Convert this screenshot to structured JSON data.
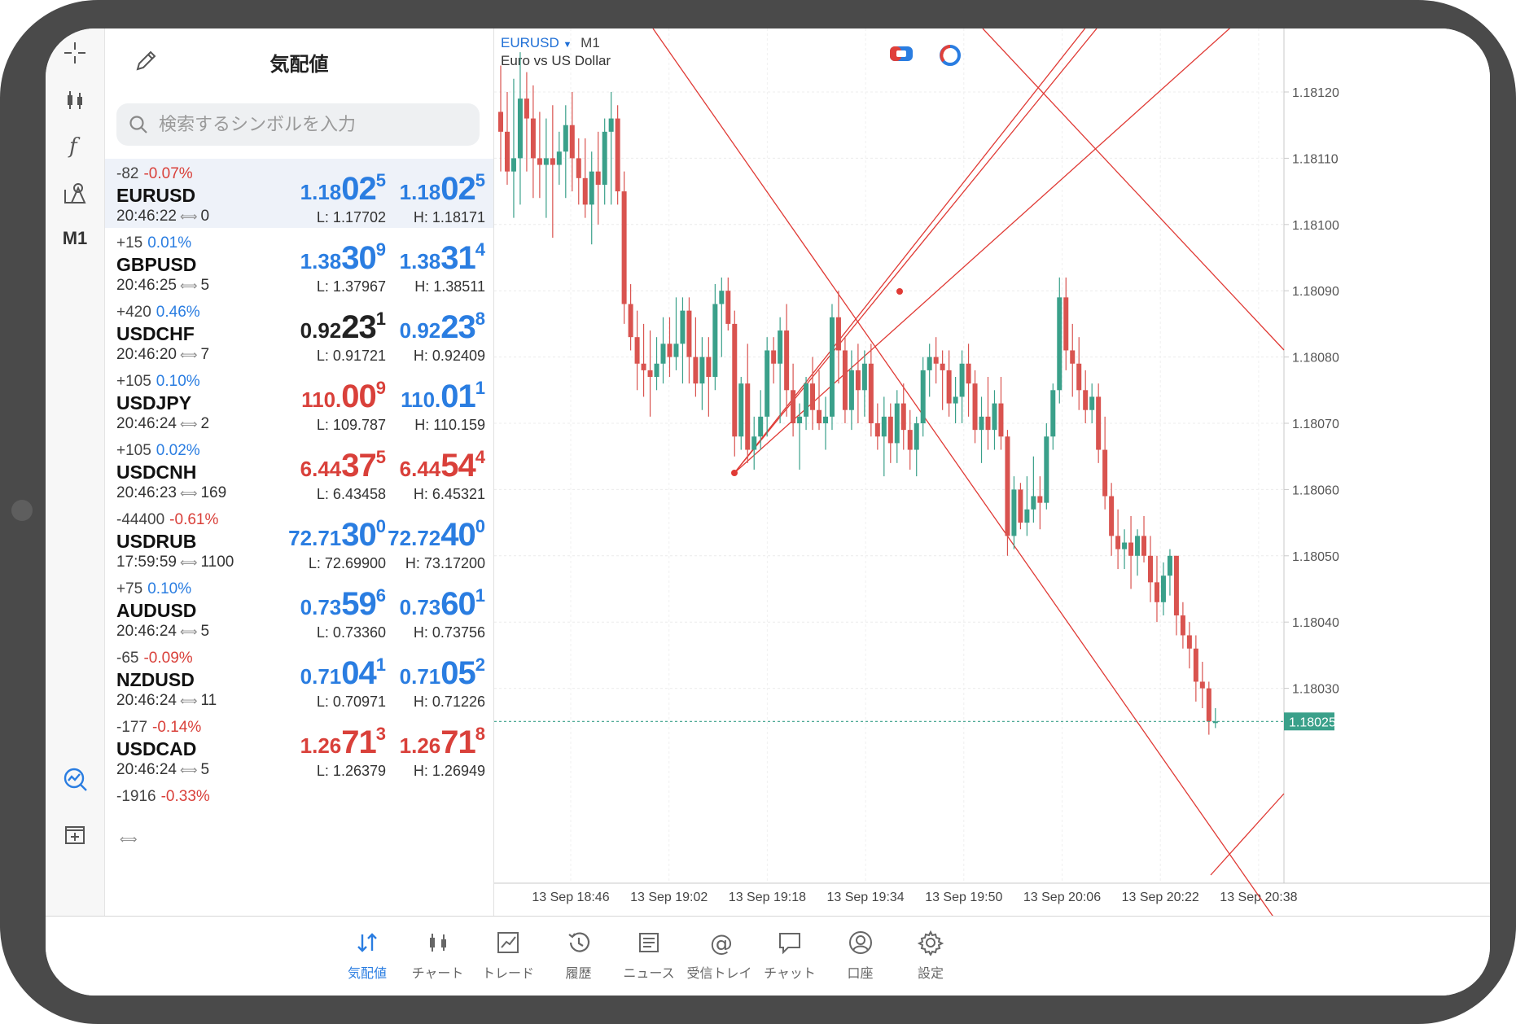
{
  "left_toolbar": {
    "timeframe_label": "M1",
    "icons": [
      "crosshair-icon",
      "indicators-icon",
      "function-icon",
      "objects-icon",
      "timeframe",
      "trade-signals-icon",
      "add-window-icon"
    ]
  },
  "quotes": {
    "title": "気配値",
    "search_placeholder": "検索するシンボルを入力",
    "rows": [
      {
        "change": "-82",
        "pct": "-0.07%",
        "dir": "dn",
        "symbol": "EURUSD",
        "time": "20:46:22",
        "spread": "0",
        "bid": {
          "a": "1.18",
          "b": "02",
          "c": "5",
          "color": "up"
        },
        "ask": {
          "a": "1.18",
          "b": "02",
          "c": "5",
          "color": "up"
        },
        "low": "L: 1.17702",
        "high": "H: 1.18171",
        "selected": true
      },
      {
        "change": "+15",
        "pct": "0.01%",
        "dir": "up",
        "symbol": "GBPUSD",
        "time": "20:46:25",
        "spread": "5",
        "bid": {
          "a": "1.38",
          "b": "30",
          "c": "9",
          "color": "up"
        },
        "ask": {
          "a": "1.38",
          "b": "31",
          "c": "4",
          "color": "up"
        },
        "low": "L: 1.37967",
        "high": "H: 1.38511"
      },
      {
        "change": "+420",
        "pct": "0.46%",
        "dir": "up",
        "symbol": "USDCHF",
        "time": "20:46:20",
        "spread": "7",
        "bid": {
          "a": "0.92",
          "b": "23",
          "c": "1",
          "color": "flat"
        },
        "ask": {
          "a": "0.92",
          "b": "23",
          "c": "8",
          "color": "up"
        },
        "low": "L: 0.91721",
        "high": "H: 0.92409"
      },
      {
        "change": "+105",
        "pct": "0.10%",
        "dir": "up",
        "symbol": "USDJPY",
        "time": "20:46:24",
        "spread": "2",
        "bid": {
          "a": "110.",
          "b": "00",
          "c": "9",
          "color": "dn"
        },
        "ask": {
          "a": "110.",
          "b": "01",
          "c": "1",
          "color": "up"
        },
        "low": "L: 109.787",
        "high": "H: 110.159"
      },
      {
        "change": "+105",
        "pct": "0.02%",
        "dir": "up",
        "symbol": "USDCNH",
        "time": "20:46:23",
        "spread": "169",
        "bid": {
          "a": "6.44",
          "b": "37",
          "c": "5",
          "color": "dn"
        },
        "ask": {
          "a": "6.44",
          "b": "54",
          "c": "4",
          "color": "dn"
        },
        "low": "L: 6.43458",
        "high": "H: 6.45321"
      },
      {
        "change": "-44400",
        "pct": "-0.61%",
        "dir": "dn",
        "symbol": "USDRUB",
        "time": "17:59:59",
        "spread": "1100",
        "bid": {
          "a": "72.71",
          "b": "30",
          "c": "0",
          "color": "up"
        },
        "ask": {
          "a": "72.72",
          "b": "40",
          "c": "0",
          "color": "up"
        },
        "low": "L: 72.69900",
        "high": "H: 73.17200"
      },
      {
        "change": "+75",
        "pct": "0.10%",
        "dir": "up",
        "symbol": "AUDUSD",
        "time": "20:46:24",
        "spread": "5",
        "bid": {
          "a": "0.73",
          "b": "59",
          "c": "6",
          "color": "up"
        },
        "ask": {
          "a": "0.73",
          "b": "60",
          "c": "1",
          "color": "up"
        },
        "low": "L: 0.73360",
        "high": "H: 0.73756"
      },
      {
        "change": "-65",
        "pct": "-0.09%",
        "dir": "dn",
        "symbol": "NZDUSD",
        "time": "20:46:24",
        "spread": "11",
        "bid": {
          "a": "0.71",
          "b": "04",
          "c": "1",
          "color": "up"
        },
        "ask": {
          "a": "0.71",
          "b": "05",
          "c": "2",
          "color": "up"
        },
        "low": "L: 0.70971",
        "high": "H: 0.71226"
      },
      {
        "change": "-177",
        "pct": "-0.14%",
        "dir": "dn",
        "symbol": "USDCAD",
        "time": "20:46:24",
        "spread": "5",
        "bid": {
          "a": "1.26",
          "b": "71",
          "c": "3",
          "color": "dn"
        },
        "ask": {
          "a": "1.26",
          "b": "71",
          "c": "8",
          "color": "dn"
        },
        "low": "L: 1.26379",
        "high": "H: 1.26949"
      },
      {
        "change": "-1916",
        "pct": "-0.33%",
        "dir": "dn",
        "symbol": "",
        "time": "",
        "spread": "",
        "bid": {
          "a": "",
          "b": "",
          "c": "",
          "color": "dn"
        },
        "ask": {
          "a": "",
          "b": "",
          "c": "",
          "color": "dn"
        },
        "low": "",
        "high": ""
      }
    ]
  },
  "chart": {
    "symbol": "EURUSD",
    "timeframe": "M1",
    "description": "Euro vs US Dollar",
    "current_price": "1.18025",
    "colors": {
      "bull": "#3aa08a",
      "bear": "#d9534f",
      "line": "#e03a35",
      "bid_line": "#3aa08a"
    }
  },
  "chart_data": {
    "type": "candlestick",
    "yticks": [
      "1.18120",
      "1.18110",
      "1.18100",
      "1.18090",
      "1.18080",
      "1.18070",
      "1.18060",
      "1.18050",
      "1.18040",
      "1.18030"
    ],
    "ylim": [
      1.18015,
      1.1813
    ],
    "xticks": [
      "13 Sep 18:46",
      "13 Sep 19:02",
      "13 Sep 19:18",
      "13 Sep 19:34",
      "13 Sep 19:50",
      "13 Sep 20:06",
      "13 Sep 20:22",
      "13 Sep 20:38"
    ],
    "ohlc": [
      [
        1.18117,
        1.18124,
        1.18108,
        1.18114
      ],
      [
        1.18114,
        1.1812,
        1.18106,
        1.18108
      ],
      [
        1.18108,
        1.18122,
        1.18101,
        1.1811
      ],
      [
        1.1811,
        1.18126,
        1.18103,
        1.18119
      ],
      [
        1.18119,
        1.18123,
        1.18108,
        1.18116
      ],
      [
        1.18116,
        1.18121,
        1.18104,
        1.1811
      ],
      [
        1.1811,
        1.18117,
        1.18104,
        1.18109
      ],
      [
        1.18109,
        1.18116,
        1.18101,
        1.1811
      ],
      [
        1.1811,
        1.18118,
        1.18098,
        1.18109
      ],
      [
        1.18109,
        1.18114,
        1.18106,
        1.18111
      ],
      [
        1.18111,
        1.18118,
        1.18104,
        1.18115
      ],
      [
        1.18115,
        1.1812,
        1.18105,
        1.1811
      ],
      [
        1.1811,
        1.18113,
        1.18103,
        1.18107
      ],
      [
        1.18107,
        1.18113,
        1.18101,
        1.18103
      ],
      [
        1.18103,
        1.18111,
        1.18097,
        1.18108
      ],
      [
        1.18108,
        1.18114,
        1.181,
        1.18106
      ],
      [
        1.18106,
        1.18116,
        1.18103,
        1.18114
      ],
      [
        1.18114,
        1.1812,
        1.18103,
        1.18116
      ],
      [
        1.18116,
        1.18118,
        1.18103,
        1.18105
      ],
      [
        1.18105,
        1.18108,
        1.18085,
        1.18088
      ],
      [
        1.18088,
        1.18091,
        1.18081,
        1.18083
      ],
      [
        1.18083,
        1.18087,
        1.18075,
        1.18079
      ],
      [
        1.18079,
        1.18085,
        1.18074,
        1.18078
      ],
      [
        1.18078,
        1.18084,
        1.18071,
        1.18077
      ],
      [
        1.18077,
        1.18083,
        1.18075,
        1.18079
      ],
      [
        1.18079,
        1.18086,
        1.18076,
        1.18082
      ],
      [
        1.18082,
        1.18086,
        1.18077,
        1.1808
      ],
      [
        1.1808,
        1.18089,
        1.18078,
        1.18082
      ],
      [
        1.18082,
        1.18089,
        1.18076,
        1.18087
      ],
      [
        1.18087,
        1.18089,
        1.18076,
        1.1808
      ],
      [
        1.1808,
        1.18086,
        1.18074,
        1.18076
      ],
      [
        1.18076,
        1.18083,
        1.18072,
        1.1808
      ],
      [
        1.1808,
        1.18083,
        1.18071,
        1.18077
      ],
      [
        1.18077,
        1.18091,
        1.18075,
        1.18088
      ],
      [
        1.18088,
        1.18092,
        1.1808,
        1.1809
      ],
      [
        1.1809,
        1.18092,
        1.18084,
        1.18085
      ],
      [
        1.18085,
        1.18087,
        1.18065,
        1.18068
      ],
      [
        1.18068,
        1.18077,
        1.18066,
        1.18076
      ],
      [
        1.18076,
        1.18082,
        1.18064,
        1.18066
      ],
      [
        1.18066,
        1.18071,
        1.18063,
        1.18068
      ],
      [
        1.18068,
        1.18075,
        1.18066,
        1.18071
      ],
      [
        1.18071,
        1.18083,
        1.18068,
        1.18081
      ],
      [
        1.18081,
        1.18083,
        1.18076,
        1.18079
      ],
      [
        1.18079,
        1.18086,
        1.1807,
        1.18084
      ],
      [
        1.18084,
        1.18088,
        1.18071,
        1.18075
      ],
      [
        1.18075,
        1.18079,
        1.18068,
        1.1807
      ],
      [
        1.1807,
        1.18073,
        1.18063,
        1.18071
      ],
      [
        1.18071,
        1.18077,
        1.18069,
        1.18076
      ],
      [
        1.18076,
        1.1808,
        1.18069,
        1.18072
      ],
      [
        1.18072,
        1.18078,
        1.18069,
        1.1807
      ],
      [
        1.1807,
        1.18074,
        1.18066,
        1.18071
      ],
      [
        1.18071,
        1.18088,
        1.18069,
        1.18086
      ],
      [
        1.18086,
        1.1809,
        1.18076,
        1.18081
      ],
      [
        1.18081,
        1.18083,
        1.1807,
        1.18072
      ],
      [
        1.18072,
        1.18081,
        1.18069,
        1.18078
      ],
      [
        1.18078,
        1.18082,
        1.1807,
        1.18075
      ],
      [
        1.18075,
        1.18081,
        1.18071,
        1.18079
      ],
      [
        1.18079,
        1.18082,
        1.18068,
        1.1807
      ],
      [
        1.1807,
        1.18073,
        1.18066,
        1.18068
      ],
      [
        1.18068,
        1.18074,
        1.18062,
        1.18071
      ],
      [
        1.18071,
        1.18073,
        1.18064,
        1.18067
      ],
      [
        1.18067,
        1.18075,
        1.18064,
        1.18073
      ],
      [
        1.18073,
        1.18076,
        1.18066,
        1.18069
      ],
      [
        1.18069,
        1.18072,
        1.18063,
        1.18066
      ],
      [
        1.18066,
        1.18071,
        1.18062,
        1.1807
      ],
      [
        1.1807,
        1.1808,
        1.18068,
        1.18078
      ],
      [
        1.18078,
        1.18082,
        1.18074,
        1.1808
      ],
      [
        1.1808,
        1.18083,
        1.18076,
        1.18079
      ],
      [
        1.18079,
        1.18081,
        1.18072,
        1.18078
      ],
      [
        1.18078,
        1.18081,
        1.18071,
        1.18073
      ],
      [
        1.18073,
        1.18077,
        1.1807,
        1.18074
      ],
      [
        1.18074,
        1.18081,
        1.1807,
        1.18079
      ],
      [
        1.18079,
        1.18082,
        1.18071,
        1.18076
      ],
      [
        1.18076,
        1.18078,
        1.18067,
        1.18069
      ],
      [
        1.18069,
        1.18074,
        1.18064,
        1.18071
      ],
      [
        1.18071,
        1.18077,
        1.18066,
        1.18069
      ],
      [
        1.18069,
        1.18075,
        1.18066,
        1.18073
      ],
      [
        1.18073,
        1.18077,
        1.18066,
        1.18068
      ],
      [
        1.18068,
        1.18069,
        1.1805,
        1.18053
      ],
      [
        1.18053,
        1.18062,
        1.18051,
        1.1806
      ],
      [
        1.1806,
        1.18061,
        1.18054,
        1.18055
      ],
      [
        1.18055,
        1.18062,
        1.18053,
        1.18057
      ],
      [
        1.18057,
        1.18065,
        1.18055,
        1.18059
      ],
      [
        1.18059,
        1.18062,
        1.18054,
        1.18058
      ],
      [
        1.18058,
        1.1807,
        1.18057,
        1.18068
      ],
      [
        1.18068,
        1.18076,
        1.18066,
        1.18075
      ],
      [
        1.18075,
        1.18092,
        1.18073,
        1.18089
      ],
      [
        1.18089,
        1.18092,
        1.18078,
        1.18081
      ],
      [
        1.18081,
        1.18085,
        1.18074,
        1.18079
      ],
      [
        1.18079,
        1.18083,
        1.18072,
        1.18075
      ],
      [
        1.18075,
        1.18078,
        1.1807,
        1.18072
      ],
      [
        1.18072,
        1.18076,
        1.1807,
        1.18074
      ],
      [
        1.18074,
        1.18076,
        1.18064,
        1.18066
      ],
      [
        1.18066,
        1.18071,
        1.18057,
        1.18059
      ],
      [
        1.18059,
        1.18061,
        1.1805,
        1.18053
      ],
      [
        1.18053,
        1.18057,
        1.18048,
        1.18051
      ],
      [
        1.18051,
        1.18054,
        1.18048,
        1.18052
      ],
      [
        1.18052,
        1.18056,
        1.18045,
        1.1805
      ],
      [
        1.1805,
        1.18054,
        1.18047,
        1.18053
      ],
      [
        1.18053,
        1.18056,
        1.18049,
        1.1805
      ],
      [
        1.1805,
        1.18053,
        1.18043,
        1.18046
      ],
      [
        1.18046,
        1.1805,
        1.1804,
        1.18043
      ],
      [
        1.18043,
        1.18049,
        1.18041,
        1.18047
      ],
      [
        1.18047,
        1.18051,
        1.18044,
        1.1805
      ],
      [
        1.1805,
        1.1805,
        1.18038,
        1.18041
      ],
      [
        1.18041,
        1.18043,
        1.18036,
        1.18038
      ],
      [
        1.18038,
        1.1804,
        1.18033,
        1.18036
      ],
      [
        1.18036,
        1.18038,
        1.18028,
        1.18031
      ],
      [
        1.18031,
        1.18034,
        1.18027,
        1.1803
      ],
      [
        1.1803,
        1.18031,
        1.18023,
        1.18025
      ],
      [
        1.18025,
        1.18027,
        1.18024,
        1.18025
      ]
    ]
  },
  "bottom_tabs": [
    {
      "label": "気配値",
      "icon": "quotes-icon",
      "active": true
    },
    {
      "label": "チャート",
      "icon": "chart-icon",
      "active": false
    },
    {
      "label": "トレード",
      "icon": "trade-icon",
      "active": false
    },
    {
      "label": "履歴",
      "icon": "history-icon",
      "active": false
    },
    {
      "label": "ニュース",
      "icon": "news-icon",
      "active": false
    },
    {
      "label": "受信トレイ",
      "icon": "mailbox-icon",
      "active": false
    },
    {
      "label": "チャット",
      "icon": "chat-icon",
      "active": false
    },
    {
      "label": "口座",
      "icon": "account-icon",
      "active": false
    },
    {
      "label": "設定",
      "icon": "settings-icon",
      "active": false
    }
  ]
}
